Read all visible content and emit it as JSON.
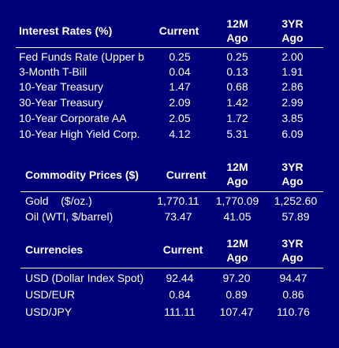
{
  "interest_rates": {
    "title": "Interest Rates (%)",
    "col_current": "Current",
    "col_12m": "12M",
    "col_12m_sub": "Ago",
    "col_3yr": "3YR",
    "col_3yr_sub": "Ago",
    "rows": [
      {
        "label": "Fed Funds Rate (Upper b",
        "current": "0.25",
        "m12": "0.25",
        "y3": "2.00"
      },
      {
        "label": "3-Month T-Bill",
        "current": "0.04",
        "m12": "0.13",
        "y3": "1.91"
      },
      {
        "label": "10-Year Treasury",
        "current": "1.47",
        "m12": "0.68",
        "y3": "2.86"
      },
      {
        "label": "30-Year Treasury",
        "current": "2.09",
        "m12": "1.42",
        "y3": "2.99"
      },
      {
        "label": "10-Year Corporate AA",
        "current": "2.05",
        "m12": "1.72",
        "y3": "3.85"
      },
      {
        "label": "10-Year High Yield Corp.",
        "current": "4.12",
        "m12": "5.31",
        "y3": "6.09"
      }
    ]
  },
  "commodity_prices": {
    "title": "Commodity Prices ($)",
    "col_current": "Current",
    "col_12m": "12M",
    "col_12m_sub": "Ago",
    "col_3yr": "3YR",
    "col_3yr_sub": "Ago",
    "rows": [
      {
        "label": "Gold    ($/oz.)",
        "current": "1,770.11",
        "m12": "1,770.09",
        "y3": "1,252.60"
      },
      {
        "label": "Oil (WTI, $/barrel)",
        "current": "73.47",
        "m12": "41.05",
        "y3": "57.89"
      }
    ]
  },
  "currencies": {
    "title": "Currencies",
    "col_current": "Current",
    "col_12m": "12M",
    "col_12m_sub": "Ago",
    "col_3yr": "3YR",
    "col_3yr_sub": "Ago",
    "rows": [
      {
        "label": "USD (Dollar Index Spot)",
        "current": "92.44",
        "m12": "97.20",
        "y3": "94.47"
      },
      {
        "label": "USD/EUR",
        "current": "0.84",
        "m12": "0.89",
        "y3": "0.86"
      },
      {
        "label": "USD/JPY",
        "current": "111.11",
        "m12": "107.47",
        "y3": "110.76"
      }
    ]
  },
  "colors": {
    "background": "#00007a",
    "text": "#ffffff"
  }
}
